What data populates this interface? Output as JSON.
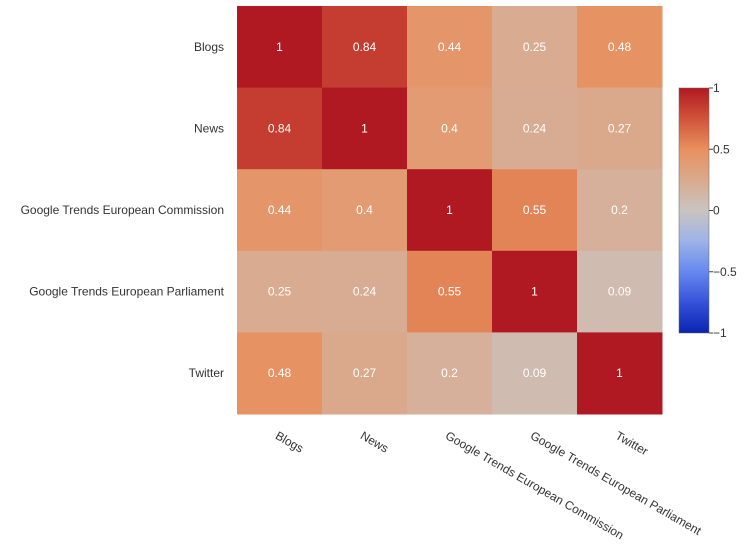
{
  "chart_data": {
    "type": "heatmap",
    "rows": [
      "Blogs",
      "News",
      "Google Trends European Commission",
      "Google Trends European Parliament",
      "Twitter"
    ],
    "columns": [
      "Blogs",
      "News",
      "Google Trends European Commission",
      "Google Trends European Parliament",
      "Twitter"
    ],
    "values": [
      [
        1,
        0.84,
        0.44,
        0.25,
        0.48
      ],
      [
        0.84,
        1,
        0.4,
        0.24,
        0.27
      ],
      [
        0.44,
        0.4,
        1,
        0.55,
        0.2
      ],
      [
        0.25,
        0.24,
        0.55,
        1,
        0.09
      ],
      [
        0.48,
        0.27,
        0.2,
        0.09,
        1
      ]
    ],
    "cell_labels": [
      [
        "1",
        "0.84",
        "0.44",
        "0.25",
        "0.48"
      ],
      [
        "0.84",
        "1",
        "0.4",
        "0.24",
        "0.27"
      ],
      [
        "0.44",
        "0.4",
        "1",
        "0.55",
        "0.2"
      ],
      [
        "0.25",
        "0.24",
        "0.55",
        "1",
        "0.09"
      ],
      [
        "0.48",
        "0.27",
        "0.2",
        "0.09",
        "1"
      ]
    ],
    "colorbar": {
      "range": [
        -1,
        1
      ],
      "ticks": [
        1,
        0.5,
        0,
        -0.5,
        -1
      ],
      "tick_labels": [
        "1",
        "0.5",
        "0",
        "−0.5",
        "−1"
      ],
      "colormap": "coolwarm",
      "position": "right"
    },
    "colors": {
      "min": "#0b24b0",
      "mid": "#c9c4c0",
      "max": "#b01822"
    }
  }
}
